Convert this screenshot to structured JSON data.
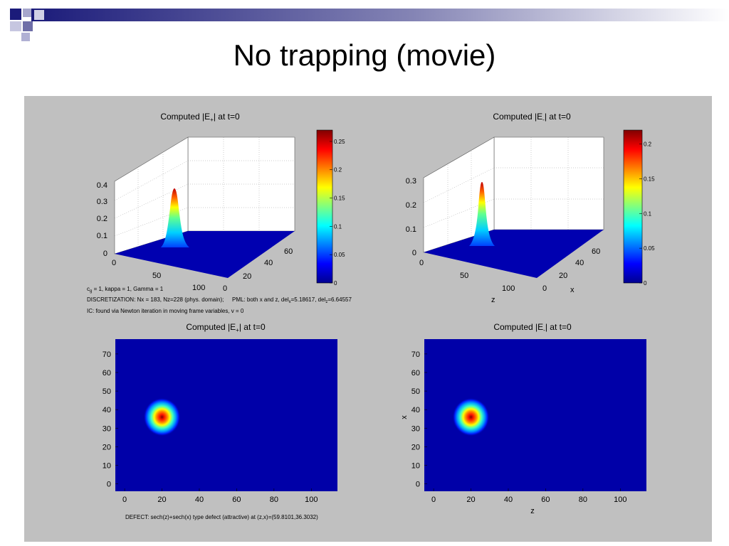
{
  "slide": {
    "title": "No trapping (movie)"
  },
  "colors": {
    "slide_bg": "#ffffff",
    "figure_bg": "#c0c0c0",
    "accent_navy": "#1b1b7a",
    "accent_lavender": "#a6a6cc"
  },
  "icons": [
    "slide-corner-squares-icon",
    "title-gradient-bar-icon"
  ],
  "figure": {
    "info_text": {
      "line1_pre": "c",
      "line1_sub": "g",
      "line1_post": " = 1, kappa = 1, Gamma = 1",
      "line2a": "DISCRETIZATION: Nx = 183, Nz=228 (phys. domain);",
      "line2b_pre": "PML: both x and z, del",
      "line2b_sub1": "x",
      "line2b_mid": "=5.18617, del",
      "line2b_sub2": "z",
      "line2b_post": "=6.64557",
      "line3": "IC: found via Newton iteration in moving frame variables, v = 0"
    },
    "defect_text": "DEFECT: sech(z)+sech(x) type defect (attractive) at (z,x)=(59.8101,36.3032)"
  },
  "chart_data": [
    {
      "type": "surface",
      "title_pre": "Computed |E",
      "title_sub": "+",
      "title_post": "| at t=0",
      "z_ticks": [
        "0",
        "0.1",
        "0.2",
        "0.3",
        "0.4"
      ],
      "x_ticks": [
        "0",
        "50",
        "100"
      ],
      "y_ticks": [
        "0",
        "20",
        "40",
        "60"
      ],
      "xlabel": "",
      "ylabel": "",
      "peak": {
        "z": 20,
        "x": 36,
        "value": 0.37
      },
      "colorbar": {
        "ticks": [
          "0",
          "0.05",
          "0.1",
          "0.15",
          "0.2",
          "0.25"
        ],
        "range": [
          0,
          0.27
        ]
      }
    },
    {
      "type": "surface",
      "title_pre": "Computed |E",
      "title_sub": "-",
      "title_post": "| at t=0",
      "z_ticks": [
        "0",
        "0.1",
        "0.2",
        "0.3"
      ],
      "x_ticks": [
        "0",
        "50",
        "100"
      ],
      "y_ticks": [
        "0",
        "20",
        "40",
        "60"
      ],
      "xlabel": "z",
      "ylabel": "x",
      "peak": {
        "z": 20,
        "x": 36,
        "value": 0.29
      },
      "colorbar": {
        "ticks": [
          "0",
          "0.05",
          "0.1",
          "0.15",
          "0.2"
        ],
        "range": [
          0,
          0.22
        ]
      }
    },
    {
      "type": "heatmap",
      "title_pre": "Computed |E",
      "title_sub": "+",
      "title_post": "| at t=0",
      "x_ticks": [
        0,
        20,
        40,
        60,
        80,
        100
      ],
      "y_ticks": [
        0,
        10,
        20,
        30,
        40,
        50,
        60,
        70
      ],
      "xlim": [
        -5,
        114
      ],
      "ylim": [
        -4,
        78
      ],
      "xlabel": "",
      "ylabel": "",
      "peak": {
        "z": 20,
        "x": 36
      }
    },
    {
      "type": "heatmap",
      "title_pre": "Computed |E",
      "title_sub": "-",
      "title_post": "| at t=0",
      "x_ticks": [
        0,
        20,
        40,
        60,
        80,
        100
      ],
      "y_ticks": [
        0,
        10,
        20,
        30,
        40,
        50,
        60,
        70
      ],
      "xlim": [
        -5,
        114
      ],
      "ylim": [
        -4,
        78
      ],
      "xlabel": "z",
      "ylabel": "x",
      "peak": {
        "z": 20,
        "x": 36
      }
    }
  ]
}
